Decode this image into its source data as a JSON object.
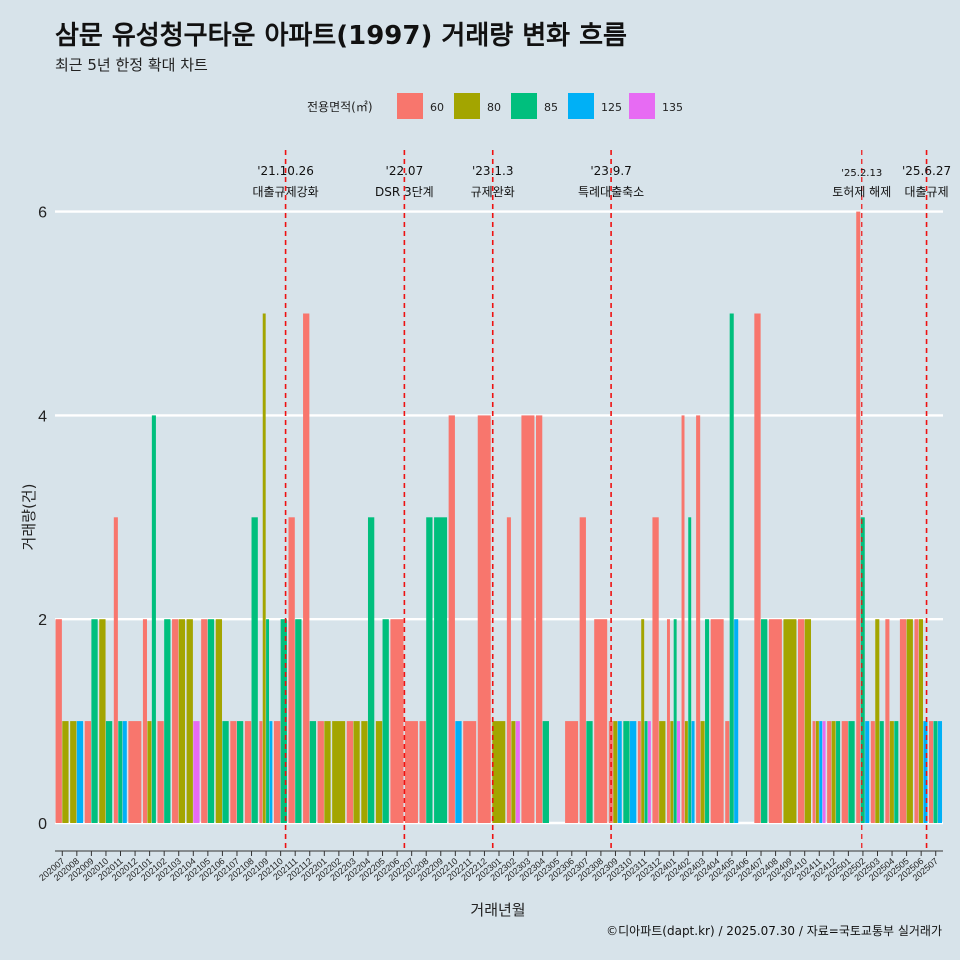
{
  "chart_data": {
    "type": "bar",
    "title": "삼문 유성청구타운 아파트(1997) 거래량 변화 흐름",
    "subtitle": "최근 5년 한정 확대 차트",
    "xlabel": "거래년월",
    "ylabel": "거래량(건)",
    "ylim": [
      0,
      6.5
    ],
    "yticks": [
      0,
      2,
      4,
      6
    ],
    "legend_title": "전용면적(㎡)",
    "legend_position": "top",
    "series": [
      {
        "name": "60",
        "color": "#f8766d"
      },
      {
        "name": "80",
        "color": "#a3a500"
      },
      {
        "name": "85",
        "color": "#00bf7d"
      },
      {
        "name": "125",
        "color": "#00b0f6"
      },
      {
        "name": "135",
        "color": "#e76bf3"
      }
    ],
    "months": [
      "202007",
      "202008",
      "202009",
      "202010",
      "202011",
      "202012",
      "202101",
      "202102",
      "202103",
      "202104",
      "202105",
      "202106",
      "202107",
      "202108",
      "202109",
      "202110",
      "202111",
      "202112",
      "202201",
      "202202",
      "202203",
      "202204",
      "202205",
      "202206",
      "202207",
      "202208",
      "202209",
      "202210",
      "202211",
      "202212",
      "202301",
      "202302",
      "202303",
      "202304",
      "202305",
      "202306",
      "202307",
      "202308",
      "202309",
      "202310",
      "202311",
      "202312",
      "202401",
      "202402",
      "202403",
      "202404",
      "202405",
      "202406",
      "202407",
      "202408",
      "202409",
      "202410",
      "202411",
      "202412",
      "202501",
      "202502",
      "202503",
      "202504",
      "202505",
      "202506",
      "202507"
    ],
    "month_bars": [
      {
        "60": 2,
        "80": 1,
        "85": 0,
        "125": 0,
        "135": 0
      },
      {
        "60": 0,
        "80": 1,
        "85": 0,
        "125": 1,
        "135": 0
      },
      {
        "60": 1,
        "80": 0,
        "85": 2,
        "125": 0,
        "135": 0
      },
      {
        "60": 0,
        "80": 2,
        "85": 1,
        "125": 0,
        "135": 0
      },
      {
        "60": 3,
        "80": 0,
        "85": 1,
        "125": 1,
        "135": 0
      },
      {
        "60": 1,
        "80": 0,
        "85": 0,
        "125": 0,
        "135": 0
      },
      {
        "60": 2,
        "80": 1,
        "85": 4,
        "125": 0,
        "135": 0
      },
      {
        "60": 1,
        "80": 0,
        "85": 2,
        "125": 0,
        "135": 0
      },
      {
        "60": 2,
        "80": 2,
        "85": 0,
        "125": 0,
        "135": 0
      },
      {
        "60": 0,
        "80": 2,
        "85": 0,
        "125": 0,
        "135": 1
      },
      {
        "60": 2,
        "80": 0,
        "85": 2,
        "125": 0,
        "135": 0
      },
      {
        "60": 0,
        "80": 2,
        "85": 1,
        "125": 0,
        "135": 0
      },
      {
        "60": 1,
        "80": 0,
        "85": 1,
        "125": 0,
        "135": 0
      },
      {
        "60": 1,
        "80": 0,
        "85": 3,
        "125": 0,
        "135": 0
      },
      {
        "60": 1,
        "80": 5,
        "85": 2,
        "125": 1,
        "135": 0
      },
      {
        "60": 1,
        "80": 0,
        "85": 2,
        "125": 0,
        "135": 0
      },
      {
        "60": 3,
        "80": 0,
        "85": 2,
        "125": 0,
        "135": 0
      },
      {
        "60": 5,
        "80": 0,
        "85": 1,
        "125": 0,
        "135": 0
      },
      {
        "60": 1,
        "80": 1,
        "85": 0,
        "125": 0,
        "135": 0
      },
      {
        "60": 0,
        "80": 1,
        "85": 0,
        "125": 0,
        "135": 0
      },
      {
        "60": 1,
        "80": 1,
        "85": 0,
        "125": 0,
        "135": 0
      },
      {
        "60": 0,
        "80": 1,
        "85": 3,
        "125": 0,
        "135": 0
      },
      {
        "60": 0,
        "80": 1,
        "85": 2,
        "125": 0,
        "135": 0
      },
      {
        "60": 2,
        "80": 0,
        "85": 0,
        "125": 0,
        "135": 0
      },
      {
        "60": 1,
        "80": 0,
        "85": 0,
        "125": 0,
        "135": 0
      },
      {
        "60": 1,
        "80": 0,
        "85": 3,
        "125": 0,
        "135": 0
      },
      {
        "60": 0,
        "80": 0,
        "85": 3,
        "125": 0,
        "135": 0
      },
      {
        "60": 4,
        "80": 0,
        "85": 0,
        "125": 1,
        "135": 0
      },
      {
        "60": 1,
        "80": 0,
        "85": 0,
        "125": 0,
        "135": 0
      },
      {
        "60": 4,
        "80": 0,
        "85": 0,
        "125": 0,
        "135": 0
      },
      {
        "60": 0,
        "80": 1,
        "85": 0,
        "125": 0,
        "135": 0
      },
      {
        "60": 3,
        "80": 1,
        "85": 0,
        "125": 0,
        "135": 1
      },
      {
        "60": 4,
        "80": 0,
        "85": 0,
        "125": 0,
        "135": 0
      },
      {
        "60": 4,
        "80": 0,
        "85": 1,
        "125": 0,
        "135": 0
      },
      {
        "60": 0,
        "80": 0,
        "85": 0,
        "125": 0,
        "135": 0
      },
      {
        "60": 1,
        "80": 0,
        "85": 0,
        "125": 0,
        "135": 0
      },
      {
        "60": 3,
        "80": 0,
        "85": 1,
        "125": 0,
        "135": 0
      },
      {
        "60": 2,
        "80": 0,
        "85": 0,
        "125": 0,
        "135": 0
      },
      {
        "60": 1,
        "80": 1,
        "85": 0,
        "125": 1,
        "135": 0
      },
      {
        "60": 0,
        "80": 0,
        "85": 1,
        "125": 1,
        "135": 0
      },
      {
        "60": 1,
        "80": 2,
        "85": 1,
        "125": 0,
        "135": 1
      },
      {
        "60": 3,
        "80": 1,
        "85": 0,
        "125": 0,
        "135": 0
      },
      {
        "60": 2,
        "80": 1,
        "85": 2,
        "125": 0,
        "135": 1
      },
      {
        "60": 4,
        "80": 1,
        "85": 3,
        "125": 1,
        "135": 0
      },
      {
        "60": 4,
        "80": 1,
        "85": 2,
        "125": 0,
        "135": 0
      },
      {
        "60": 2,
        "80": 0,
        "85": 0,
        "125": 0,
        "135": 0
      },
      {
        "60": 1,
        "80": 0,
        "85": 5,
        "125": 2,
        "135": 0
      },
      {
        "60": 0,
        "80": 0,
        "85": 0,
        "125": 0,
        "135": 0
      },
      {
        "60": 5,
        "80": 0,
        "85": 2,
        "125": 0,
        "135": 0
      },
      {
        "60": 2,
        "80": 0,
        "85": 0,
        "125": 0,
        "135": 0
      },
      {
        "60": 0,
        "80": 2,
        "85": 0,
        "125": 0,
        "135": 0
      },
      {
        "60": 2,
        "80": 2,
        "85": 0,
        "125": 0,
        "135": 0
      },
      {
        "60": 1,
        "80": 1,
        "85": 0,
        "125": 1,
        "135": 1
      },
      {
        "60": 1,
        "80": 1,
        "85": 1,
        "125": 0,
        "135": 0
      },
      {
        "60": 1,
        "80": 0,
        "85": 1,
        "125": 0,
        "135": 0
      },
      {
        "60": 6,
        "80": 0,
        "85": 3,
        "125": 1,
        "135": 0
      },
      {
        "60": 1,
        "80": 2,
        "85": 1,
        "125": 0,
        "135": 0
      },
      {
        "60": 2,
        "80": 1,
        "85": 1,
        "125": 0,
        "135": 0
      },
      {
        "60": 2,
        "80": 2,
        "85": 0,
        "125": 0,
        "135": 0
      },
      {
        "60": 2,
        "80": 2,
        "85": 0,
        "125": 1,
        "135": 0
      },
      {
        "60": 1,
        "80": 0,
        "85": 1,
        "125": 1,
        "135": 0
      }
    ],
    "events": [
      {
        "date": "'21.10.26",
        "label": "대출규제강화",
        "month": "202110",
        "frac": 0.84,
        "small": false
      },
      {
        "date": "'22.07",
        "label": "DSR 3단계",
        "month": "202207",
        "frac": 0.0,
        "small": false
      },
      {
        "date": "'23.1.3",
        "label": "규제완화",
        "month": "202301",
        "frac": 0.07,
        "small": false
      },
      {
        "date": "'23.9.7",
        "label": "특례대출축소",
        "month": "202309",
        "frac": 0.2,
        "small": false
      },
      {
        "date": "'25.2.13",
        "label": "토허제 해제",
        "month": "202502",
        "frac": 0.42,
        "small": true
      },
      {
        "date": "'25.6.27",
        "label": "대출규제",
        "month": "202506",
        "frac": 0.87,
        "small": false
      }
    ],
    "caption": "©디아파트(dapt.kr) / 2025.07.30 / 자료=국토교통부 실거래가"
  }
}
